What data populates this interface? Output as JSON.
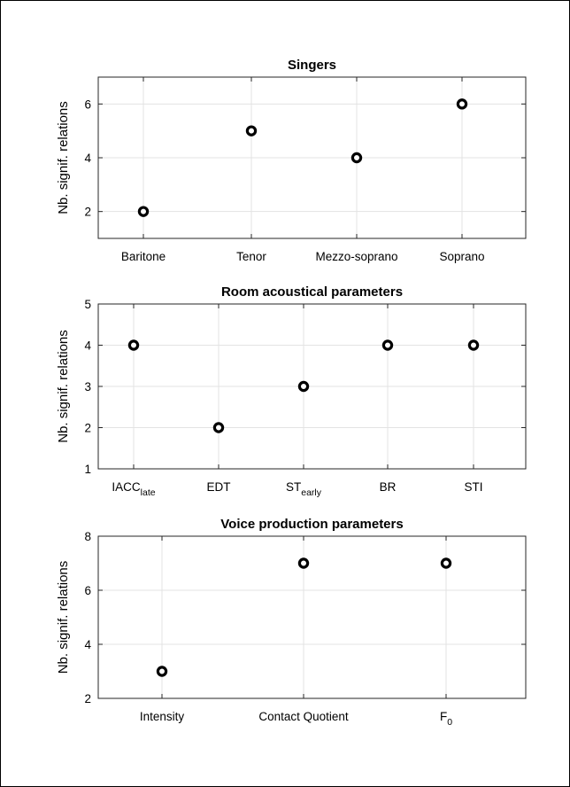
{
  "chart_data": [
    {
      "type": "scatter",
      "title": "Singers",
      "ylabel": "Nb. signif. relations",
      "xlabel": "",
      "categories": [
        {
          "main": "Baritone",
          "sub": ""
        },
        {
          "main": "Tenor",
          "sub": ""
        },
        {
          "main": "Mezzo-soprano",
          "sub": ""
        },
        {
          "main": "Soprano",
          "sub": ""
        }
      ],
      "values": [
        2,
        5,
        4,
        6
      ],
      "ylim": [
        1,
        7
      ],
      "yticks": [
        2,
        4,
        6
      ],
      "grid": true
    },
    {
      "type": "scatter",
      "title": "Room acoustical parameters",
      "ylabel": "Nb. signif. relations",
      "xlabel": "",
      "categories": [
        {
          "main": "IACC",
          "sub": "late"
        },
        {
          "main": "EDT",
          "sub": ""
        },
        {
          "main": "ST",
          "sub": "early"
        },
        {
          "main": "BR",
          "sub": ""
        },
        {
          "main": "STI",
          "sub": ""
        }
      ],
      "values": [
        4,
        2,
        3,
        4,
        4
      ],
      "ylim": [
        1,
        5
      ],
      "yticks": [
        1,
        2,
        3,
        4,
        5
      ],
      "grid": true
    },
    {
      "type": "scatter",
      "title": "Voice production parameters",
      "ylabel": "Nb. signif. relations",
      "xlabel": "",
      "categories": [
        {
          "main": "Intensity",
          "sub": ""
        },
        {
          "main": "Contact Quotient",
          "sub": ""
        },
        {
          "main": "F",
          "sub": "0"
        }
      ],
      "values": [
        3,
        7,
        7
      ],
      "ylim": [
        2,
        8
      ],
      "yticks": [
        2,
        4,
        6,
        8
      ],
      "grid": true
    }
  ],
  "colors": {
    "marker_edge": "#000000",
    "grid": "#e3e3e3",
    "axis": "#262626"
  }
}
